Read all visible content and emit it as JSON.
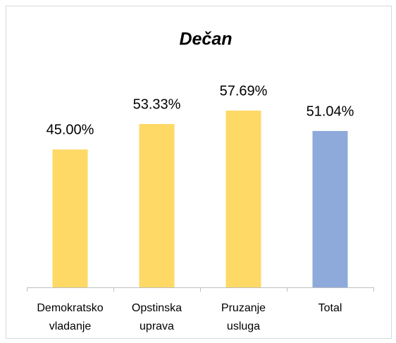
{
  "chart_data": {
    "type": "bar",
    "title": "Dečan",
    "categories": [
      [
        "Demokratsko",
        "vladanje"
      ],
      [
        "Opstinska",
        "uprava"
      ],
      [
        "Pruzanje",
        "usluga"
      ],
      [
        "Total"
      ]
    ],
    "values": [
      45.0,
      53.33,
      57.69,
      51.04
    ],
    "value_labels": [
      "45.00%",
      "53.33%",
      "57.69%",
      "51.04%"
    ],
    "colors": [
      "#ffd966",
      "#ffd966",
      "#ffd966",
      "#8eaadb"
    ],
    "ylim": [
      0,
      60
    ]
  }
}
